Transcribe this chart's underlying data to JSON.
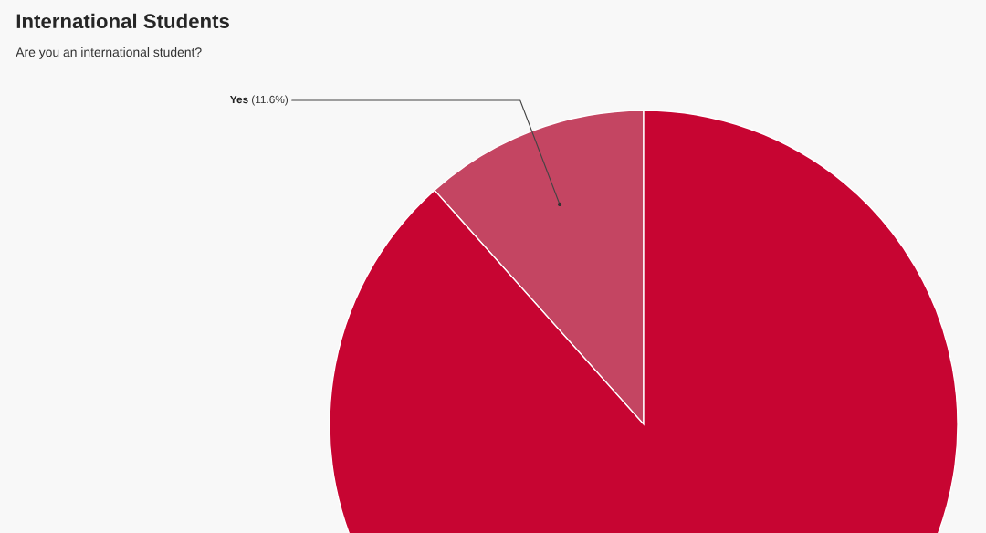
{
  "chart_data": {
    "type": "pie",
    "title": "International Students",
    "subtitle": "Are you an international student?",
    "categories": [
      "Yes",
      null
    ],
    "values": [
      11.6,
      88.4
    ],
    "colors": [
      "#c44562",
      "#c70532"
    ],
    "value_labels": [
      "(11.6%)",
      null
    ]
  }
}
